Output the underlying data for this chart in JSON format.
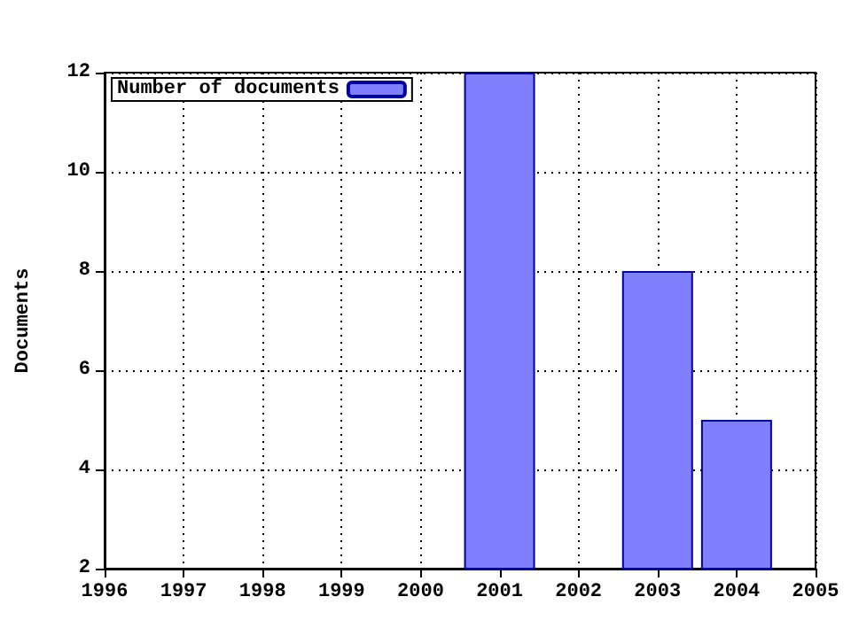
{
  "chart_data": {
    "type": "bar",
    "ylabel": "Documents",
    "x": [
      2001,
      2003,
      2004
    ],
    "series": [
      {
        "name": "Number of documents",
        "color": "#8080ff",
        "values": [
          12,
          8,
          5
        ]
      }
    ],
    "xlim": [
      1996,
      2005
    ],
    "xticks": [
      1996,
      1997,
      1998,
      1999,
      2000,
      2001,
      2002,
      2003,
      2004,
      2005
    ],
    "ylim": [
      2,
      12
    ],
    "yticks": [
      2,
      4,
      6,
      8,
      10,
      12
    ],
    "grid": true,
    "legend": "top left"
  }
}
